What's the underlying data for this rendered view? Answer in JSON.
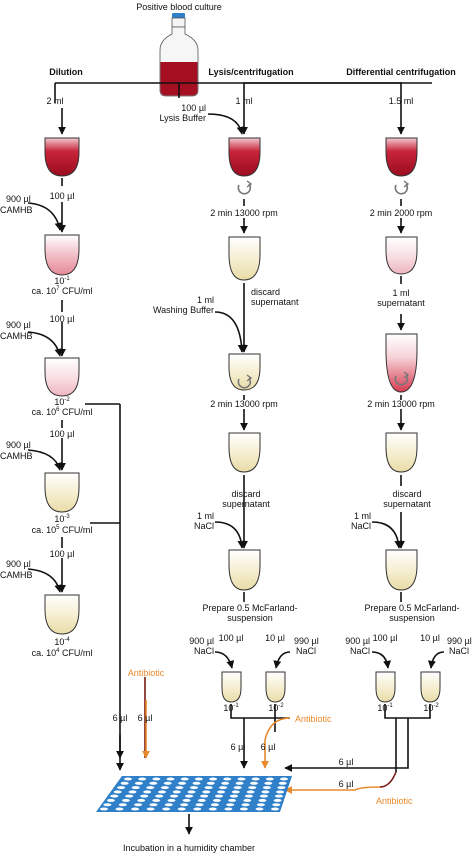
{
  "labels": {
    "source": "Positive blood culture",
    "dilution": "Dilution",
    "lysis": "Lysis/centrifugation",
    "differential": "Differential centrifugation",
    "incubation": "Incubation in a humidity chamber"
  },
  "dilution": {
    "initial_volume": "2 ml",
    "transfer": "100 µl",
    "diluent": [
      "900 µl",
      "CAMHB"
    ],
    "steps": [
      {
        "factor": "10",
        "exp": "-1",
        "conc_prefix": "ca. 10",
        "conc_exp": "7",
        "conc_unit": " CFU/ml"
      },
      {
        "factor": "10",
        "exp": "-2",
        "conc_prefix": "ca. 10",
        "conc_exp": "6",
        "conc_unit": " CFU/ml"
      },
      {
        "factor": "10",
        "exp": "-3",
        "conc_prefix": "ca. 10",
        "conc_exp": "5",
        "conc_unit": " CFU/ml"
      },
      {
        "factor": "10",
        "exp": "-4",
        "conc_prefix": "ca. 10",
        "conc_exp": "4",
        "conc_unit": " CFU/ml"
      }
    ]
  },
  "lysis": {
    "volume": "1 ml",
    "buffer": [
      "100 µl",
      "Lysis Buffer"
    ],
    "spin": "2 min 13000 rpm",
    "discard": [
      "discard",
      "supernatant"
    ],
    "wash": [
      "1 ml",
      "Washing Buffer"
    ],
    "nacl": [
      "1 ml",
      "NaCl"
    ],
    "prepare": [
      "Prepare 0.5 McFarland-",
      "suspension"
    ]
  },
  "differential": {
    "volume": "1.5 ml",
    "spin1": "2 min 2000 rpm",
    "transfer": [
      "1 ml",
      "supernatant"
    ],
    "spin2": "2 min 13000 rpm",
    "discard": [
      "discard",
      "supernatant"
    ],
    "nacl": [
      "1 ml",
      "NaCl"
    ],
    "prepare": [
      "Prepare 0.5 McFarland-",
      "suspension"
    ]
  },
  "final_dilutions": {
    "vol_a": "100 µl",
    "diluent_a": [
      "900 µl",
      "NaCl"
    ],
    "vol_b": "10 µl",
    "diluent_b": [
      "990 µl",
      "NaCl"
    ],
    "factor_a": [
      "10",
      "-1"
    ],
    "factor_b": [
      "10",
      "-2"
    ]
  },
  "inoculum": "6 µl",
  "antibiotic": "Antibiotic",
  "colors": {
    "blood_dark": "#a50f22",
    "blood_light": "#e7a3ae",
    "suspension": "#efe4b5",
    "antibiotic": "#e8892b",
    "plate": "#2f7fc9"
  }
}
